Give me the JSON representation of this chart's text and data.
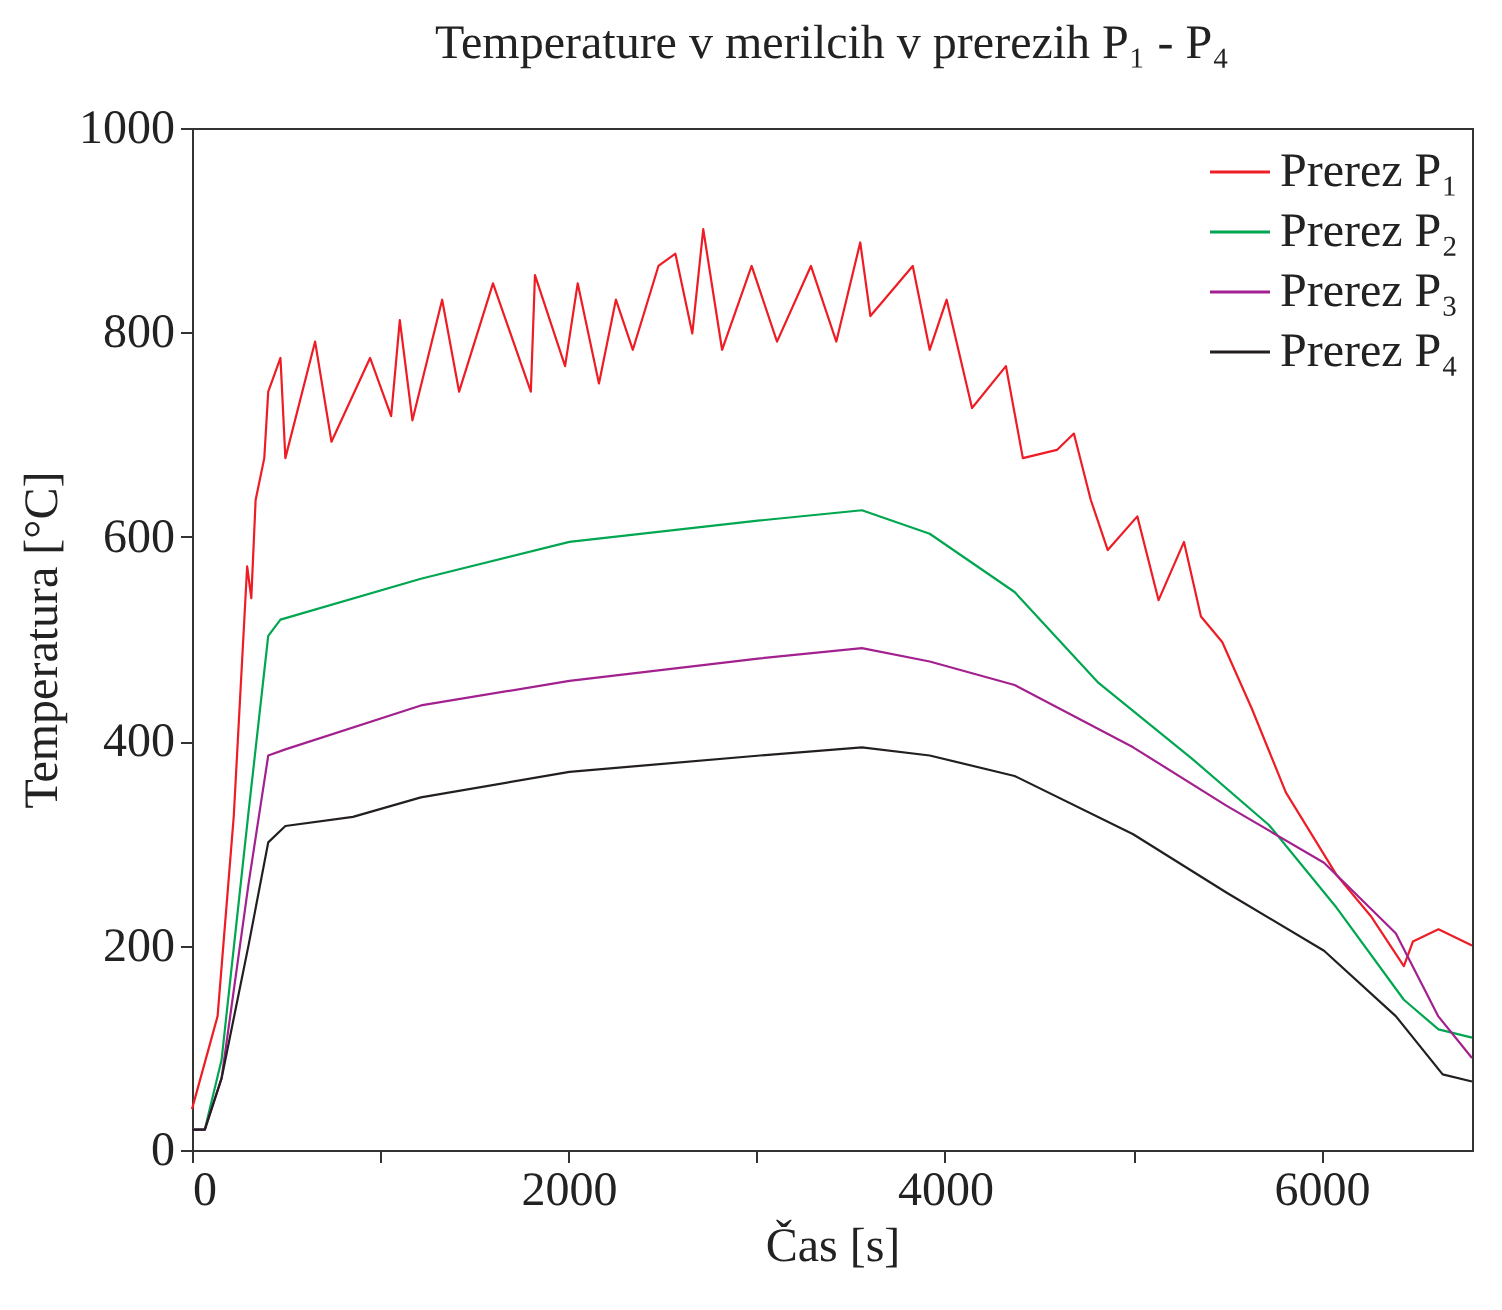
{
  "chart_data": {
    "type": "line",
    "title": "Temperature v merilcih v prerezih P₁  - P₄",
    "xlabel": "Čas [s]",
    "ylabel": "Temperatura [°C]",
    "xlim": [
      0,
      6800
    ],
    "ylim": [
      0,
      1000
    ],
    "xticks": [
      0,
      {
        "value": 1000,
        "label": null
      },
      2000,
      {
        "value": 3000,
        "label": null
      },
      4000,
      {
        "value": 5000,
        "label": null
      },
      6000
    ],
    "yticks": [
      0,
      200,
      400,
      600,
      800,
      1000
    ],
    "grid": false,
    "legend": "top right",
    "line_style": "solid",
    "marker": "none",
    "series": [
      {
        "name": "Prerez P₁",
        "color": "#ee1c24",
        "x": [
          0,
          136,
          222,
          293,
          315,
          338,
          384,
          405,
          470,
          496,
          654,
          741,
          946,
          1058,
          1104,
          1171,
          1329,
          1419,
          1599,
          1800,
          1822,
          1982,
          2049,
          2162,
          2252,
          2342,
          2478,
          2568,
          2658,
          2716,
          2816,
          2973,
          3108,
          3288,
          3423,
          3550,
          3604,
          3829,
          3919,
          4009,
          4144,
          4324,
          4414,
          4595,
          4685,
          4775,
          4865,
          5022,
          5135,
          5270,
          5360,
          5473,
          5630,
          5811,
          6081,
          6262,
          6438,
          6486,
          6622,
          6800
        ],
        "values": [
          40,
          131,
          327,
          571,
          540,
          636,
          677,
          742,
          775,
          677,
          791,
          693,
          775,
          718,
          812,
          714,
          832,
          742,
          848,
          742,
          856,
          767,
          848,
          750,
          832,
          783,
          865,
          877,
          799,
          901,
          783,
          865,
          791,
          865,
          791,
          888,
          816,
          865,
          783,
          832,
          726,
          767,
          677,
          685,
          701,
          636,
          587,
          620,
          538,
          595,
          522,
          497,
          432,
          350,
          269,
          229,
          180,
          204,
          216,
          200
        ]
      },
      {
        "name": "Prerez P₂",
        "color": "#00a650",
        "x": [
          0,
          68,
          157,
          300,
          405,
          470,
          1216,
          2005,
          3018,
          3559,
          3919,
          4370,
          4816,
          5312,
          5721,
          6081,
          6438,
          6622,
          6800
        ],
        "values": [
          20,
          20,
          88,
          330,
          503,
          519,
          559,
          595,
          616,
          626,
          603,
          546,
          457,
          383,
          318,
          237,
          147,
          118,
          110
        ]
      },
      {
        "name": "Prerez P₃",
        "color": "#a3208f",
        "x": [
          0,
          68,
          157,
          300,
          405,
          496,
          1216,
          2005,
          3018,
          3559,
          3919,
          4370,
          5000,
          5495,
          6014,
          6395,
          6620,
          6800
        ],
        "values": [
          20,
          20,
          70,
          260,
          386,
          392,
          435,
          459,
          481,
          491,
          478,
          455,
          394,
          337,
          281,
          212,
          131,
          90
        ]
      },
      {
        "name": "Prerez P₄",
        "color": "#231f20",
        "x": [
          0,
          68,
          157,
          300,
          405,
          496,
          855,
          1216,
          2005,
          3018,
          3559,
          3919,
          4370,
          5000,
          5495,
          6014,
          6395,
          6644,
          6800
        ],
        "values": [
          20,
          20,
          70,
          200,
          301,
          317,
          326,
          345,
          370,
          386,
          394,
          386,
          366,
          309,
          252,
          195,
          131,
          74,
          67
        ]
      }
    ]
  }
}
